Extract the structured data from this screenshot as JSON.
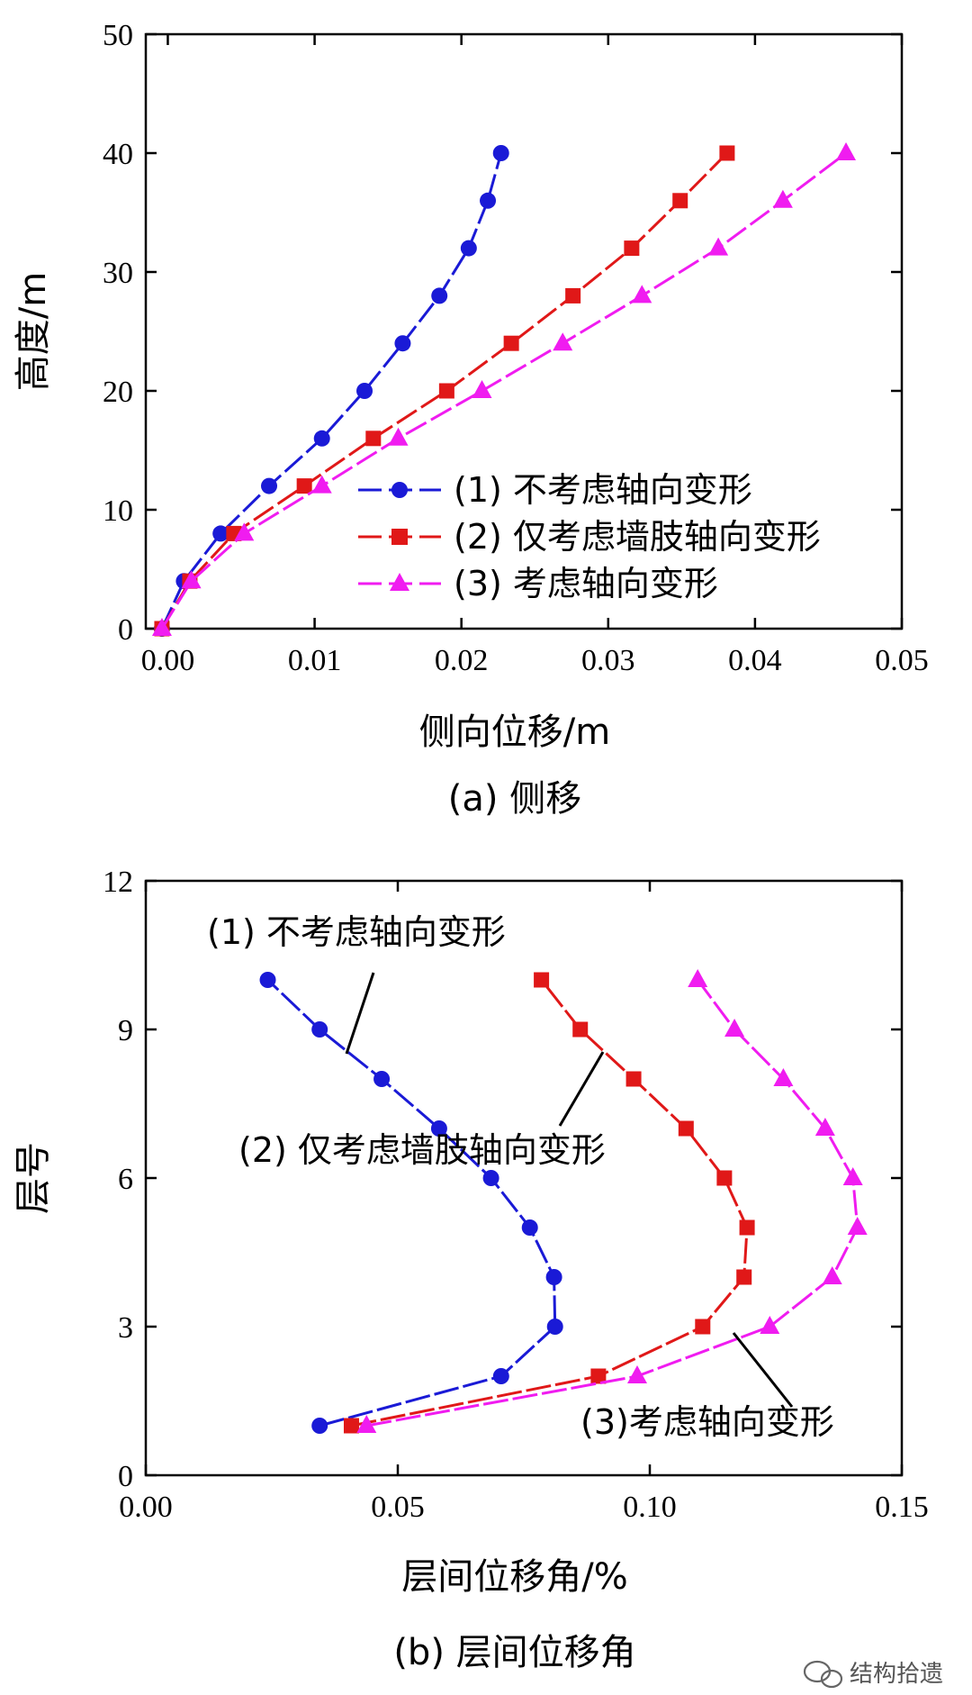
{
  "chart_data": [
    {
      "type": "line",
      "caption": "(a) 侧移",
      "xlabel": "侧向位移/m",
      "ylabel": "高度/m",
      "xlim": [
        -0.0015,
        0.05
      ],
      "ylim": [
        0,
        50
      ],
      "xticks": [
        "0.00",
        "0.01",
        "0.02",
        "0.03",
        "0.04",
        "0.05"
      ],
      "yticks": [
        "0",
        "10",
        "20",
        "30",
        "40",
        "50"
      ],
      "legend": [
        "(1) 不考虑轴向变形",
        "(2) 仅考虑墙肢轴向变形",
        "(3) 考虑轴向变形"
      ],
      "series": [
        {
          "name": "(1) 不考虑轴向变形",
          "color": "#1a1ad6",
          "marker": "circle",
          "x": [
            -0.0004,
            0.0011,
            0.0036,
            0.0069,
            0.0105,
            0.0134,
            0.016,
            0.0185,
            0.0205,
            0.0218,
            0.0227
          ],
          "y": [
            0,
            4,
            8,
            12,
            16,
            20,
            24,
            28,
            32,
            36,
            40
          ]
        },
        {
          "name": "(2) 仅考虑墙肢轴向变形",
          "color": "#e01818",
          "marker": "square",
          "x": [
            -0.0004,
            0.0015,
            0.0045,
            0.0093,
            0.014,
            0.019,
            0.0234,
            0.0276,
            0.0316,
            0.0349,
            0.0381
          ],
          "y": [
            0,
            4,
            8,
            12,
            16,
            20,
            24,
            28,
            32,
            36,
            40
          ]
        },
        {
          "name": "(3) 考虑轴向变形",
          "color": "#f01cf0",
          "marker": "triangle",
          "x": [
            -0.0004,
            0.0016,
            0.0052,
            0.0105,
            0.0157,
            0.0214,
            0.0269,
            0.0323,
            0.0375,
            0.0419,
            0.0462
          ],
          "y": [
            0,
            4,
            8,
            12,
            16,
            20,
            24,
            28,
            32,
            36,
            40
          ]
        }
      ]
    },
    {
      "type": "line",
      "caption": "(b) 层间位移角",
      "xlabel": "层间位移角/%",
      "ylabel": "层号",
      "xlim": [
        0,
        0.15
      ],
      "ylim": [
        0,
        12
      ],
      "xticks": [
        "0.00",
        "0.05",
        "0.10",
        "0.15"
      ],
      "yticks": [
        "0",
        "3",
        "6",
        "9",
        "12"
      ],
      "annotations": [
        "(1) 不考虑轴向变形",
        "(2) 仅考虑墙肢轴向变形",
        "(3)考虑轴向变形"
      ],
      "series": [
        {
          "name": "(1) 不考虑轴向变形",
          "color": "#1a1ad6",
          "marker": "circle",
          "x": [
            0.0345,
            0.0705,
            0.0812,
            0.081,
            0.0762,
            0.0685,
            0.0582,
            0.0468,
            0.0345,
            0.0242
          ],
          "y": [
            1,
            2,
            3,
            4,
            5,
            6,
            7,
            8,
            9,
            10
          ]
        },
        {
          "name": "(2) 仅考虑墙肢轴向变形",
          "color": "#e01818",
          "marker": "square",
          "x": [
            0.0408,
            0.0898,
            0.1105,
            0.1187,
            0.1193,
            0.1148,
            0.1072,
            0.0968,
            0.0862,
            0.0785
          ],
          "y": [
            1,
            2,
            3,
            4,
            5,
            6,
            7,
            8,
            9,
            10
          ]
        },
        {
          "name": "(3) 考虑轴向变形",
          "color": "#f01cf0",
          "marker": "triangle",
          "x": [
            0.0438,
            0.0975,
            0.1238,
            0.1362,
            0.1412,
            0.1403,
            0.1348,
            0.1265,
            0.1168,
            0.1095
          ],
          "y": [
            1,
            2,
            3,
            4,
            5,
            6,
            7,
            8,
            9,
            10
          ]
        }
      ]
    }
  ],
  "watermark": "结构拾遗"
}
